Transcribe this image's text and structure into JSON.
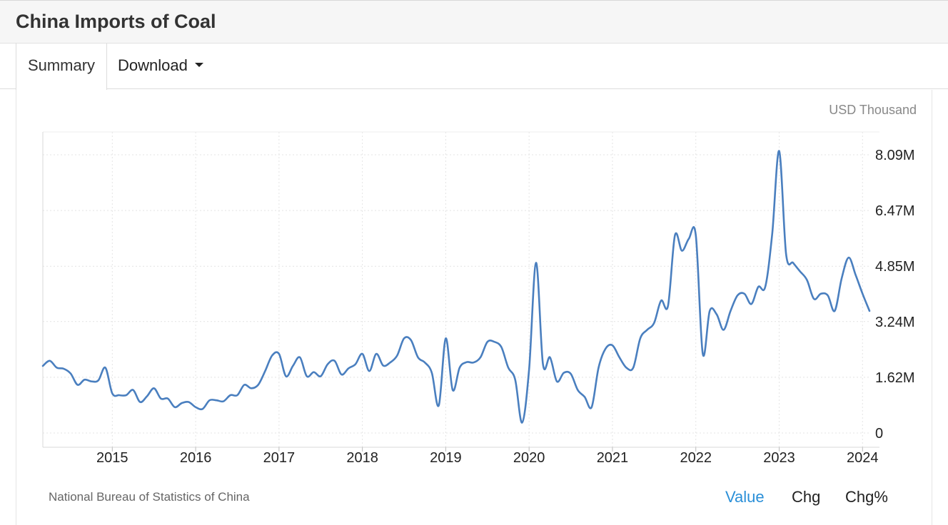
{
  "header": {
    "title": "China Imports of Coal"
  },
  "tabs": {
    "summary": "Summary",
    "download": "Download"
  },
  "footer": {
    "source": "National Bureau of Statistics of China",
    "views": [
      "Value",
      "Chg",
      "Chg%"
    ]
  },
  "colors": {
    "line": "#4a7fbf",
    "active_link": "#2a8fd8"
  },
  "chart_data": {
    "type": "line",
    "unit": "USD Thousand",
    "title": "",
    "xlabel": "",
    "ylabel": "",
    "xlim": [
      "2014-03",
      "2024-02"
    ],
    "ylim": [
      0,
      8500000
    ],
    "y_ticks": [
      {
        "value": 0,
        "label": "0"
      },
      {
        "value": 1620000,
        "label": "1.62M"
      },
      {
        "value": 3240000,
        "label": "3.24M"
      },
      {
        "value": 4850000,
        "label": "4.85M"
      },
      {
        "value": 6470000,
        "label": "6.47M"
      },
      {
        "value": 8090000,
        "label": "8.09M"
      }
    ],
    "x_ticks": [
      "2015",
      "2016",
      "2017",
      "2018",
      "2019",
      "2020",
      "2021",
      "2022",
      "2023",
      "2024"
    ],
    "grid": true,
    "series": [
      {
        "x": [
          "2014-03",
          "2014-04",
          "2014-05",
          "2014-06",
          "2014-07",
          "2014-08",
          "2014-09",
          "2014-10",
          "2014-11",
          "2014-12",
          "2015-01",
          "2015-02",
          "2015-03",
          "2015-04",
          "2015-05",
          "2015-06",
          "2015-07",
          "2015-08",
          "2015-09",
          "2015-10",
          "2015-11",
          "2015-12",
          "2016-01",
          "2016-02",
          "2016-03",
          "2016-04",
          "2016-05",
          "2016-06",
          "2016-07",
          "2016-08",
          "2016-09",
          "2016-10",
          "2016-11",
          "2016-12",
          "2017-01",
          "2017-02",
          "2017-03",
          "2017-04",
          "2017-05",
          "2017-06",
          "2017-07",
          "2017-08",
          "2017-09",
          "2017-10",
          "2017-11",
          "2017-12",
          "2018-01",
          "2018-02",
          "2018-03",
          "2018-04",
          "2018-05",
          "2018-06",
          "2018-07",
          "2018-08",
          "2018-09",
          "2018-10",
          "2018-11",
          "2018-12",
          "2019-01",
          "2019-02",
          "2019-03",
          "2019-04",
          "2019-05",
          "2019-06",
          "2019-07",
          "2019-08",
          "2019-09",
          "2019-10",
          "2019-11",
          "2019-12",
          "2020-01",
          "2020-02",
          "2020-03",
          "2020-04",
          "2020-05",
          "2020-06",
          "2020-07",
          "2020-08",
          "2020-09",
          "2020-10",
          "2020-11",
          "2020-12",
          "2021-01",
          "2021-02",
          "2021-03",
          "2021-04",
          "2021-05",
          "2021-06",
          "2021-07",
          "2021-08",
          "2021-09",
          "2021-10",
          "2021-11",
          "2021-12",
          "2022-01",
          "2022-02",
          "2022-03",
          "2022-04",
          "2022-05",
          "2022-06",
          "2022-07",
          "2022-08",
          "2022-09",
          "2022-10",
          "2022-11",
          "2022-12",
          "2023-01",
          "2023-02",
          "2023-03",
          "2023-04",
          "2023-05",
          "2023-06",
          "2023-07",
          "2023-08",
          "2023-09",
          "2023-10",
          "2023-11",
          "2023-12",
          "2024-01",
          "2024-02"
        ],
        "values": [
          1950000,
          2100000,
          1900000,
          1870000,
          1730000,
          1400000,
          1550000,
          1500000,
          1530000,
          1900000,
          1150000,
          1100000,
          1100000,
          1250000,
          900000,
          1070000,
          1300000,
          1000000,
          1000000,
          750000,
          870000,
          900000,
          750000,
          700000,
          950000,
          950000,
          920000,
          1100000,
          1100000,
          1400000,
          1300000,
          1400000,
          1800000,
          2250000,
          2300000,
          1650000,
          1950000,
          2200000,
          1650000,
          1770000,
          1650000,
          2000000,
          2100000,
          1700000,
          1880000,
          2000000,
          2300000,
          1800000,
          2300000,
          1960000,
          2050000,
          2250000,
          2750000,
          2700000,
          2200000,
          2050000,
          1750000,
          800000,
          2750000,
          1250000,
          1900000,
          2060000,
          2050000,
          2200000,
          2650000,
          2650000,
          2500000,
          1900000,
          1550000,
          300000,
          1850000,
          4950000,
          2000000,
          2200000,
          1500000,
          1750000,
          1720000,
          1250000,
          1050000,
          750000,
          1900000,
          2450000,
          2550000,
          2200000,
          1900000,
          1900000,
          2750000,
          3000000,
          3200000,
          3850000,
          3700000,
          5750000,
          5300000,
          5650000,
          5750000,
          2300000,
          3550000,
          3450000,
          3000000,
          3550000,
          4000000,
          4050000,
          3750000,
          4250000,
          4250000,
          5800000,
          8200000,
          5200000,
          4950000,
          4700000,
          4450000,
          3900000,
          4050000,
          4000000,
          3550000,
          4500000,
          5100000,
          4600000,
          4050000,
          3550000
        ]
      }
    ]
  }
}
